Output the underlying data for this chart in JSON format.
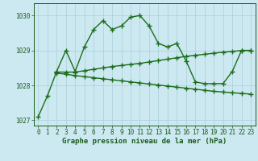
{
  "line1_x": [
    0,
    1,
    2,
    3,
    4,
    5,
    6,
    7,
    8,
    9,
    10,
    11,
    12,
    13,
    14,
    15,
    16,
    17,
    18,
    19,
    20,
    21,
    22,
    23
  ],
  "line1_y": [
    1027.1,
    1027.7,
    1028.4,
    1029.0,
    1028.4,
    1029.1,
    1029.6,
    1029.85,
    1029.6,
    1029.7,
    1029.95,
    1030.0,
    1029.7,
    1029.2,
    1029.1,
    1029.2,
    1028.7,
    1028.1,
    1028.05,
    1028.05,
    1028.05,
    1028.4,
    1029.0,
    1029.0
  ],
  "line2_x": [
    2,
    3,
    4,
    5,
    6,
    7,
    8,
    9,
    10,
    11,
    12,
    13,
    14,
    15,
    16,
    17,
    18,
    19,
    20,
    21,
    22,
    23
  ],
  "line2_y": [
    1028.38,
    1028.38,
    1028.38,
    1028.42,
    1028.46,
    1028.5,
    1028.54,
    1028.57,
    1028.6,
    1028.63,
    1028.67,
    1028.71,
    1028.75,
    1028.79,
    1028.83,
    1028.86,
    1028.89,
    1028.92,
    1028.95,
    1028.97,
    1029.0,
    1029.0
  ],
  "line3_x": [
    2,
    3,
    4,
    5,
    6,
    7,
    8,
    9,
    10,
    11,
    12,
    13,
    14,
    15,
    16,
    17,
    18,
    19,
    20,
    21,
    22,
    23
  ],
  "line3_y": [
    1028.35,
    1028.32,
    1028.28,
    1028.25,
    1028.22,
    1028.19,
    1028.16,
    1028.13,
    1028.1,
    1028.07,
    1028.04,
    1028.01,
    1027.98,
    1027.95,
    1027.92,
    1027.89,
    1027.86,
    1027.83,
    1027.81,
    1027.79,
    1027.77,
    1027.75
  ],
  "background_color": "#cce8f0",
  "grid_color": "#aacfdb",
  "line_color": "#1a6e1a",
  "ylim": [
    1026.85,
    1030.35
  ],
  "xlim": [
    -0.5,
    23.5
  ],
  "yticks": [
    1027,
    1028,
    1029,
    1030
  ],
  "xticks": [
    0,
    1,
    2,
    3,
    4,
    5,
    6,
    7,
    8,
    9,
    10,
    11,
    12,
    13,
    14,
    15,
    16,
    17,
    18,
    19,
    20,
    21,
    22,
    23
  ],
  "xlabel": "Graphe pression niveau de la mer (hPa)",
  "xlabel_fontsize": 6.5,
  "tick_fontsize": 5.5,
  "tick_color": "#1a5c1a",
  "marker": "+",
  "markersize": 4,
  "linewidth": 1.0
}
